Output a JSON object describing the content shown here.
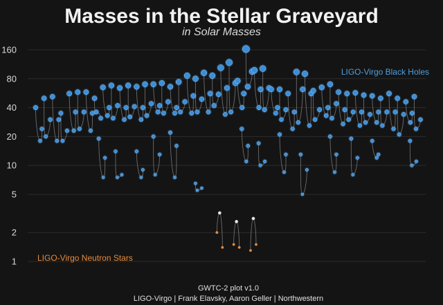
{
  "chart_data": {
    "type": "scatter",
    "title": "Masses in the Stellar Graveyard",
    "subtitle": "in Solar Masses",
    "yscale": "log",
    "ylim": [
      0.9,
      175
    ],
    "yticks": [
      1,
      2,
      5,
      10,
      20,
      40,
      80,
      160
    ],
    "grid": true,
    "legend": {
      "bh": {
        "label": "LIGO-Virgo Black Holes",
        "color": "#3b8ed8"
      },
      "ns": {
        "label": "LIGO-Virgo Neutron Stars",
        "color": "#e88a3a"
      }
    },
    "credits": {
      "line1": "GWTC-2 plot v1.0",
      "line2": "LIGO-Virgo | Frank Elavsky, Aaron Geller | Northwestern"
    },
    "bh_events": [
      {
        "x": 1,
        "m1": 40,
        "m2": 24,
        "mf": 18
      },
      {
        "x": 2,
        "m1": 50,
        "m2": 30,
        "mf": 20
      },
      {
        "x": 3,
        "m1": 52,
        "m2": 30,
        "mf": 18
      },
      {
        "x": 4,
        "m1": 35,
        "m2": 23,
        "mf": 18
      },
      {
        "x": 5,
        "m1": 56,
        "m2": 36,
        "mf": 23
      },
      {
        "x": 6,
        "m1": 58,
        "m2": 36,
        "mf": 24
      },
      {
        "x": 7,
        "m1": 58,
        "m2": 35,
        "mf": 23
      },
      {
        "x": 8,
        "m1": 50,
        "m2": 31,
        "mf": 36
      },
      {
        "x": 9,
        "m1": 65,
        "m2": 40,
        "mf": 33
      },
      {
        "x": 10,
        "m1": 68,
        "m2": 42,
        "mf": 31
      },
      {
        "x": 11,
        "m1": 64,
        "m2": 40,
        "mf": 30
      },
      {
        "x": 12,
        "m1": 68,
        "m2": 41,
        "mf": 32
      },
      {
        "x": 13,
        "m1": 66,
        "m2": 40,
        "mf": 30
      },
      {
        "x": 14,
        "m1": 70,
        "m2": 44,
        "mf": 33
      },
      {
        "x": 15,
        "m1": 70,
        "m2": 42,
        "mf": 36
      },
      {
        "x": 16,
        "m1": 72,
        "m2": 46,
        "mf": 35
      },
      {
        "x": 17,
        "m1": 66,
        "m2": 40,
        "mf": 35
      },
      {
        "x": 18,
        "m1": 74,
        "m2": 46,
        "mf": 36
      },
      {
        "x": 19,
        "m1": 86,
        "m2": 53,
        "mf": 35
      },
      {
        "x": 20,
        "m1": 80,
        "m2": 49,
        "mf": 36
      },
      {
        "x": 21,
        "m1": 92,
        "m2": 56,
        "mf": 36
      },
      {
        "x": 22,
        "m1": 86,
        "m2": 55,
        "mf": 42
      },
      {
        "x": 23,
        "m1": 104,
        "m2": 64,
        "mf": 34
      },
      {
        "x": 24,
        "m1": 118,
        "m2": 72,
        "mf": 36
      },
      {
        "x": 25,
        "m1": 76,
        "m2": 56,
        "mf": 40
      },
      {
        "x": 26,
        "m1": 163,
        "m2": 95,
        "mf": 66
      },
      {
        "x": 27,
        "m1": 98,
        "m2": 62,
        "mf": 40
      },
      {
        "x": 28,
        "m1": 102,
        "m2": 64,
        "mf": 38
      },
      {
        "x": 29,
        "m1": 62,
        "m2": 40,
        "mf": 35
      },
      {
        "x": 30,
        "m1": 62,
        "m2": 38,
        "mf": 30
      },
      {
        "x": 31,
        "m1": 56,
        "m2": 36,
        "mf": 24
      },
      {
        "x": 32,
        "m1": 94,
        "m2": 62,
        "mf": 28
      },
      {
        "x": 33,
        "m1": 90,
        "m2": 56,
        "mf": 26
      },
      {
        "x": 34,
        "m1": 60,
        "m2": 38,
        "mf": 30
      },
      {
        "x": 35,
        "m1": 65,
        "m2": 40,
        "mf": 33
      },
      {
        "x": 36,
        "m1": 70,
        "m2": 44,
        "mf": 31
      },
      {
        "x": 37,
        "m1": 58,
        "m2": 38,
        "mf": 27
      },
      {
        "x": 38,
        "m1": 56,
        "m2": 36,
        "mf": 30
      },
      {
        "x": 39,
        "m1": 57,
        "m2": 36,
        "mf": 26
      },
      {
        "x": 40,
        "m1": 54,
        "m2": 34,
        "mf": 28
      },
      {
        "x": 41,
        "m1": 53,
        "m2": 36,
        "mf": 28
      },
      {
        "x": 42,
        "m1": 50,
        "m2": 36,
        "mf": 26
      },
      {
        "x": 43,
        "m1": 56,
        "m2": 36,
        "mf": 24
      },
      {
        "x": 44,
        "m1": 50,
        "m2": 34,
        "mf": 21
      },
      {
        "x": 45,
        "m1": 46,
        "m2": 35,
        "mf": 28
      },
      {
        "x": 46,
        "m1": 52,
        "m2": 30,
        "mf": 24
      }
    ],
    "low_events": [
      {
        "x": 8.5,
        "m1": 19,
        "m2": 12,
        "mf": 7.5
      },
      {
        "x": 10.5,
        "m1": 14,
        "m2": 8,
        "mf": 7.5
      },
      {
        "x": 13,
        "m1": 14,
        "m2": 9,
        "mf": 7.5
      },
      {
        "x": 15,
        "m1": 20,
        "m2": 13,
        "mf": 8
      },
      {
        "x": 17,
        "m1": 22,
        "m2": 16,
        "mf": 7.5
      },
      {
        "x": 20,
        "m1": 6.5,
        "m2": 5.8,
        "mf": 5.5
      },
      {
        "x": 25.5,
        "m1": 24,
        "m2": 16,
        "mf": 11
      },
      {
        "x": 27.5,
        "m1": 17,
        "m2": 11,
        "mf": 10
      },
      {
        "x": 30,
        "m1": 21,
        "m2": 13,
        "mf": 8.5
      },
      {
        "x": 32.5,
        "m1": 13,
        "m2": 9,
        "mf": 5
      },
      {
        "x": 36,
        "m1": 20,
        "m2": 13,
        "mf": 8.5
      },
      {
        "x": 38.5,
        "m1": 19,
        "m2": 12,
        "mf": 8
      },
      {
        "x": 41,
        "m1": 18,
        "m2": 13,
        "mf": 12
      },
      {
        "x": 45.5,
        "m1": 18,
        "m2": 11,
        "mf": 10
      }
    ],
    "ns_events": [
      {
        "x": 22.5,
        "m1": 3.2,
        "m2": 2.0,
        "mf": 1.4
      },
      {
        "x": 24.5,
        "m1": 2.6,
        "m2": 1.5,
        "mf": 1.4
      },
      {
        "x": 26.5,
        "m1": 2.8,
        "m2": 1.3,
        "mf": 1.5
      }
    ]
  }
}
